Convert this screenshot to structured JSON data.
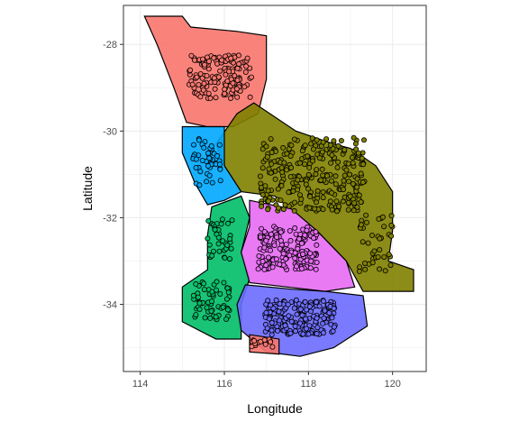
{
  "chart_data": {
    "type": "scatter",
    "title": "",
    "xlabel": "Longitude",
    "ylabel": "Latitude",
    "xlim": [
      113.6,
      120.8
    ],
    "ylim": [
      -35.55,
      -27.1
    ],
    "x_ticks": [
      114,
      116,
      118,
      120
    ],
    "y_ticks": [
      -28,
      -30,
      -32,
      -34
    ],
    "x_tick_labels": [
      "114",
      "116",
      "118",
      "120"
    ],
    "y_tick_labels": [
      "-28",
      "-30",
      "-32",
      "-34"
    ],
    "grid": true,
    "legend": "none",
    "regions": [
      {
        "color": "#F8766D",
        "outline": [
          [
            114.1,
            -27.35
          ],
          [
            115.0,
            -27.35
          ],
          [
            115.2,
            -27.6
          ],
          [
            116.3,
            -27.7
          ],
          [
            117.0,
            -27.8
          ],
          [
            117.0,
            -28.8
          ],
          [
            116.8,
            -29.6
          ],
          [
            116.2,
            -29.9
          ],
          [
            115.6,
            -29.9
          ],
          [
            115.1,
            -29.8
          ],
          [
            114.8,
            -29.0
          ],
          [
            114.4,
            -28.0
          ]
        ]
      },
      {
        "color": "#808000",
        "outline": [
          [
            116.7,
            -29.35
          ],
          [
            117.7,
            -30.0
          ],
          [
            118.6,
            -30.3
          ],
          [
            119.0,
            -30.4
          ],
          [
            119.6,
            -30.8
          ],
          [
            120.0,
            -31.4
          ],
          [
            120.0,
            -32.3
          ],
          [
            119.9,
            -33.0
          ],
          [
            120.5,
            -33.2
          ],
          [
            120.5,
            -33.7
          ],
          [
            119.3,
            -33.7
          ],
          [
            118.9,
            -33.0
          ],
          [
            118.2,
            -32.3
          ],
          [
            117.2,
            -31.5
          ],
          [
            116.4,
            -31.4
          ],
          [
            116.0,
            -30.8
          ],
          [
            115.8,
            -30.3
          ],
          [
            116.3,
            -29.6
          ]
        ]
      },
      {
        "color": "#00A9FF",
        "outline": [
          [
            115.0,
            -29.9
          ],
          [
            116.0,
            -29.9
          ],
          [
            116.0,
            -30.8
          ],
          [
            116.4,
            -31.4
          ],
          [
            116.0,
            -31.6
          ],
          [
            115.6,
            -31.7
          ],
          [
            115.3,
            -31.2
          ],
          [
            115.0,
            -30.5
          ]
        ]
      },
      {
        "color": "#00BE67",
        "outline": [
          [
            115.7,
            -31.75
          ],
          [
            116.4,
            -31.5
          ],
          [
            116.6,
            -32.0
          ],
          [
            116.4,
            -32.8
          ],
          [
            116.6,
            -33.4
          ],
          [
            116.4,
            -34.0
          ],
          [
            116.4,
            -34.8
          ],
          [
            115.8,
            -34.8
          ],
          [
            115.0,
            -34.4
          ],
          [
            115.0,
            -33.6
          ],
          [
            115.6,
            -33.2
          ],
          [
            115.6,
            -32.4
          ]
        ]
      },
      {
        "color": "#E76BF3",
        "outline": [
          [
            116.6,
            -31.6
          ],
          [
            117.6,
            -31.8
          ],
          [
            118.2,
            -32.3
          ],
          [
            118.9,
            -33.0
          ],
          [
            119.1,
            -33.6
          ],
          [
            118.4,
            -33.7
          ],
          [
            117.5,
            -33.6
          ],
          [
            116.6,
            -33.5
          ],
          [
            116.4,
            -32.8
          ],
          [
            116.6,
            -32.2
          ]
        ]
      },
      {
        "color": "#6C6CFF",
        "outline": [
          [
            116.5,
            -33.55
          ],
          [
            117.6,
            -33.65
          ],
          [
            118.4,
            -33.7
          ],
          [
            119.3,
            -33.8
          ],
          [
            119.4,
            -34.5
          ],
          [
            118.6,
            -35.0
          ],
          [
            117.8,
            -35.2
          ],
          [
            117.0,
            -35.1
          ],
          [
            116.4,
            -34.6
          ],
          [
            116.3,
            -34.0
          ]
        ]
      },
      {
        "color": "#F8766D",
        "outline": [
          [
            116.6,
            -34.7
          ],
          [
            117.3,
            -34.8
          ],
          [
            117.3,
            -35.15
          ],
          [
            116.6,
            -35.1
          ]
        ]
      }
    ],
    "clusters": [
      {
        "color": "#F8766D",
        "center": [
          115.9,
          -28.75
        ],
        "spread": [
          0.75,
          0.5
        ],
        "count": 150
      },
      {
        "color": "#808000",
        "center": [
          118.1,
          -31.0
        ],
        "spread": [
          1.25,
          0.85
        ],
        "count": 280
      },
      {
        "color": "#808000",
        "center": [
          119.6,
          -32.6
        ],
        "spread": [
          0.4,
          0.7
        ],
        "count": 40
      },
      {
        "color": "#00A9FF",
        "center": [
          115.6,
          -30.7
        ],
        "spread": [
          0.35,
          0.55
        ],
        "count": 45
      },
      {
        "color": "#00BE67",
        "center": [
          115.9,
          -32.5
        ],
        "spread": [
          0.3,
          0.5
        ],
        "count": 35
      },
      {
        "color": "#00BE67",
        "center": [
          115.7,
          -33.9
        ],
        "spread": [
          0.45,
          0.45
        ],
        "count": 60
      },
      {
        "color": "#E76BF3",
        "center": [
          117.5,
          -32.7
        ],
        "spread": [
          0.7,
          0.5
        ],
        "count": 170
      },
      {
        "color": "#6C6CFF",
        "center": [
          117.8,
          -34.3
        ],
        "spread": [
          0.85,
          0.4
        ],
        "count": 190
      },
      {
        "color": "#F8766D",
        "center": [
          116.9,
          -34.9
        ],
        "spread": [
          0.25,
          0.1
        ],
        "count": 15
      }
    ]
  }
}
